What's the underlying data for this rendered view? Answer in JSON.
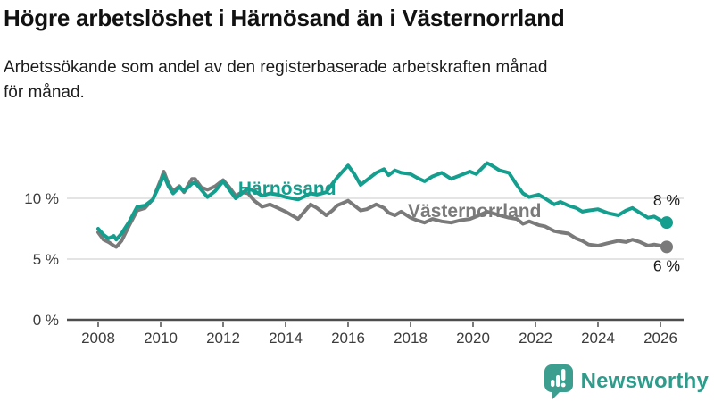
{
  "header": {
    "title": "Högre arbetslöshet i Härnösand än i Västernorrland",
    "subtitle": "Arbetssökande som andel av den registerbaserade arbetskraften månad\nför månad."
  },
  "chart_data": {
    "type": "line",
    "title": "Högre arbetslöshet i Härnösand än i Västernorrland",
    "subtitle": "Arbetssökande som andel av den registerbaserade arbetskraften månad för månad.",
    "xlabel": "",
    "ylabel": "",
    "unit": "%",
    "grid": "horizontal",
    "xlim": [
      2007.0,
      2026.743
    ],
    "ylim": [
      0,
      13.82
    ],
    "x_ticks": [
      2008,
      2010,
      2012,
      2014,
      2016,
      2018,
      2020,
      2022,
      2024,
      2026
    ],
    "y_ticks": [
      {
        "value": 0,
        "label": "0 %"
      },
      {
        "value": 5,
        "label": "5 %"
      },
      {
        "value": 10,
        "label": "10 %"
      }
    ],
    "x": [
      2008.0,
      2008.17,
      2008.33,
      2008.5,
      2008.58,
      2008.75,
      2009.0,
      2009.25,
      2009.5,
      2009.75,
      2010.0,
      2010.1,
      2010.25,
      2010.4,
      2010.6,
      2010.75,
      2011.0,
      2011.1,
      2011.3,
      2011.5,
      2011.75,
      2012.0,
      2012.2,
      2012.4,
      2012.6,
      2012.8,
      2013.0,
      2013.25,
      2013.5,
      2013.75,
      2014.0,
      2014.4,
      2014.8,
      2015.0,
      2015.3,
      2015.5,
      2015.65,
      2016.0,
      2016.2,
      2016.4,
      2016.6,
      2016.9,
      2017.15,
      2017.3,
      2017.5,
      2017.7,
      2018.0,
      2018.2,
      2018.45,
      2018.7,
      2019.0,
      2019.3,
      2019.6,
      2019.9,
      2020.1,
      2020.45,
      2020.6,
      2020.85,
      2021.15,
      2021.4,
      2021.6,
      2021.8,
      2022.1,
      2022.3,
      2022.6,
      2022.8,
      2023.05,
      2023.3,
      2023.5,
      2023.7,
      2024.0,
      2024.3,
      2024.65,
      2024.9,
      2025.1,
      2025.35,
      2025.6,
      2025.8,
      2026.0,
      2026.2
    ],
    "series": [
      {
        "id": "harnosand",
        "name": "Härnösand",
        "color": "#149e8e",
        "end_label": "8 %",
        "values": [
          7.5,
          7.0,
          6.7,
          6.9,
          6.6,
          7.1,
          8.1,
          9.3,
          9.4,
          9.9,
          11.3,
          11.9,
          11.0,
          10.4,
          10.9,
          10.6,
          11.2,
          11.3,
          10.7,
          10.1,
          10.6,
          11.4,
          10.7,
          10.0,
          10.4,
          10.8,
          10.6,
          10.2,
          10.4,
          10.3,
          10.1,
          9.9,
          10.4,
          10.3,
          10.5,
          11.2,
          11.7,
          12.7,
          12.0,
          11.1,
          11.5,
          12.1,
          12.4,
          11.9,
          12.3,
          12.1,
          12.0,
          11.7,
          11.4,
          11.8,
          12.1,
          11.6,
          11.9,
          12.2,
          12.0,
          12.9,
          12.7,
          12.3,
          12.1,
          11.1,
          10.4,
          10.1,
          10.3,
          10.0,
          9.5,
          9.7,
          9.4,
          9.2,
          8.9,
          9.0,
          9.1,
          8.8,
          8.6,
          9.0,
          9.2,
          8.8,
          8.4,
          8.5,
          8.2,
          8.0
        ]
      },
      {
        "id": "vasternorrland",
        "name": "Västernorrland",
        "color": "#7a7a7a",
        "end_label": "6 %",
        "values": [
          7.2,
          6.6,
          6.4,
          6.1,
          6.0,
          6.5,
          7.8,
          9.0,
          9.2,
          9.9,
          11.5,
          12.2,
          11.2,
          10.6,
          11.0,
          10.5,
          11.6,
          11.6,
          10.9,
          10.7,
          11.0,
          11.5,
          10.9,
          10.2,
          10.5,
          10.4,
          9.8,
          9.3,
          9.5,
          9.2,
          8.9,
          8.3,
          9.5,
          9.2,
          8.6,
          9.0,
          9.4,
          9.8,
          9.4,
          9.0,
          9.1,
          9.5,
          9.2,
          8.8,
          8.6,
          8.9,
          8.4,
          8.2,
          8.0,
          8.3,
          8.1,
          8.0,
          8.2,
          8.3,
          8.5,
          8.9,
          8.8,
          8.6,
          8.4,
          8.3,
          7.9,
          8.1,
          7.8,
          7.7,
          7.3,
          7.2,
          7.1,
          6.7,
          6.5,
          6.2,
          6.1,
          6.3,
          6.5,
          6.4,
          6.6,
          6.4,
          6.1,
          6.2,
          6.1,
          6.0
        ]
      }
    ],
    "annotations": [
      {
        "text": "Härnösand",
        "x": 2014.05,
        "y": 10.82,
        "color": "#149e8e"
      },
      {
        "text": "Västernorrland",
        "x": 2020.05,
        "y": 8.95,
        "color": "#7a7a7a"
      }
    ],
    "legend_position": "inline-labels"
  },
  "footer": {
    "brand": "Newsworthy"
  },
  "colors": {
    "accent_teal": "#149e8e",
    "neutral_gray": "#7a7a7a",
    "brand_teal": "#2f9c8b",
    "axis": "#4d4d4d",
    "gridline": "#dbdbdb",
    "tick_text": "#3c3c3c",
    "end_label_text": "#1a1a1a"
  }
}
